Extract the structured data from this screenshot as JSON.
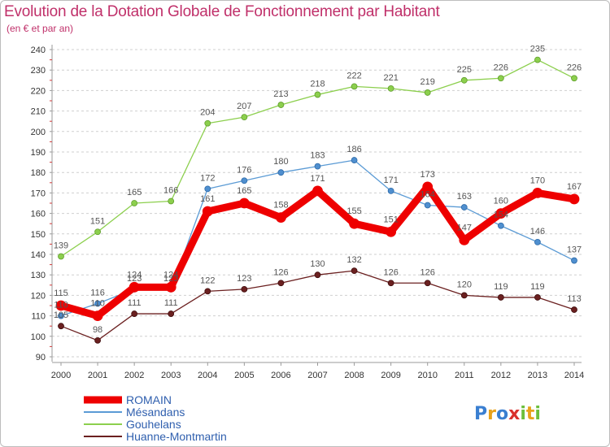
{
  "chart_data": {
    "type": "line",
    "title": "Evolution de la Dotation Globale de Fonctionnement par Habitant",
    "subtitle": "(en € et par an)",
    "xlabel": "",
    "ylabel": "",
    "ylim": [
      90,
      240
    ],
    "ytick_step": 10,
    "grid": "dashed horizontal",
    "legend_position": "bottom-left",
    "x": [
      "2000",
      "2001",
      "2002",
      "2003",
      "2004",
      "2005",
      "2006",
      "2007",
      "2008",
      "2009",
      "2010",
      "2011",
      "2012",
      "2013",
      "2014"
    ],
    "series": [
      {
        "name": "Gouhelans",
        "color": "#8ccf4d",
        "values": [
          139,
          151,
          165,
          166,
          204,
          207,
          213,
          218,
          222,
          221,
          219,
          225,
          226,
          235,
          226
        ]
      },
      {
        "name": "Mésandans",
        "color": "#5b9bd5",
        "values": [
          110,
          116,
          123,
          123,
          172,
          176,
          180,
          183,
          186,
          171,
          164,
          163,
          154,
          146,
          137
        ]
      },
      {
        "name": "Huanne-Montmartin",
        "color": "#6b2020",
        "values": [
          105,
          98,
          111,
          111,
          122,
          123,
          126,
          130,
          132,
          126,
          126,
          120,
          119,
          119,
          113
        ]
      },
      {
        "name": "ROMAIN",
        "color": "#ee0000",
        "values": [
          115,
          110,
          124,
          124,
          161,
          165,
          158,
          171,
          155,
          151,
          173,
          147,
          160,
          170,
          167
        ]
      }
    ],
    "legend_order": [
      "ROMAIN",
      "Mésandans",
      "Gouhelans",
      "Huanne-Montmartin"
    ]
  },
  "logo": {
    "text": "Proxiti"
  }
}
